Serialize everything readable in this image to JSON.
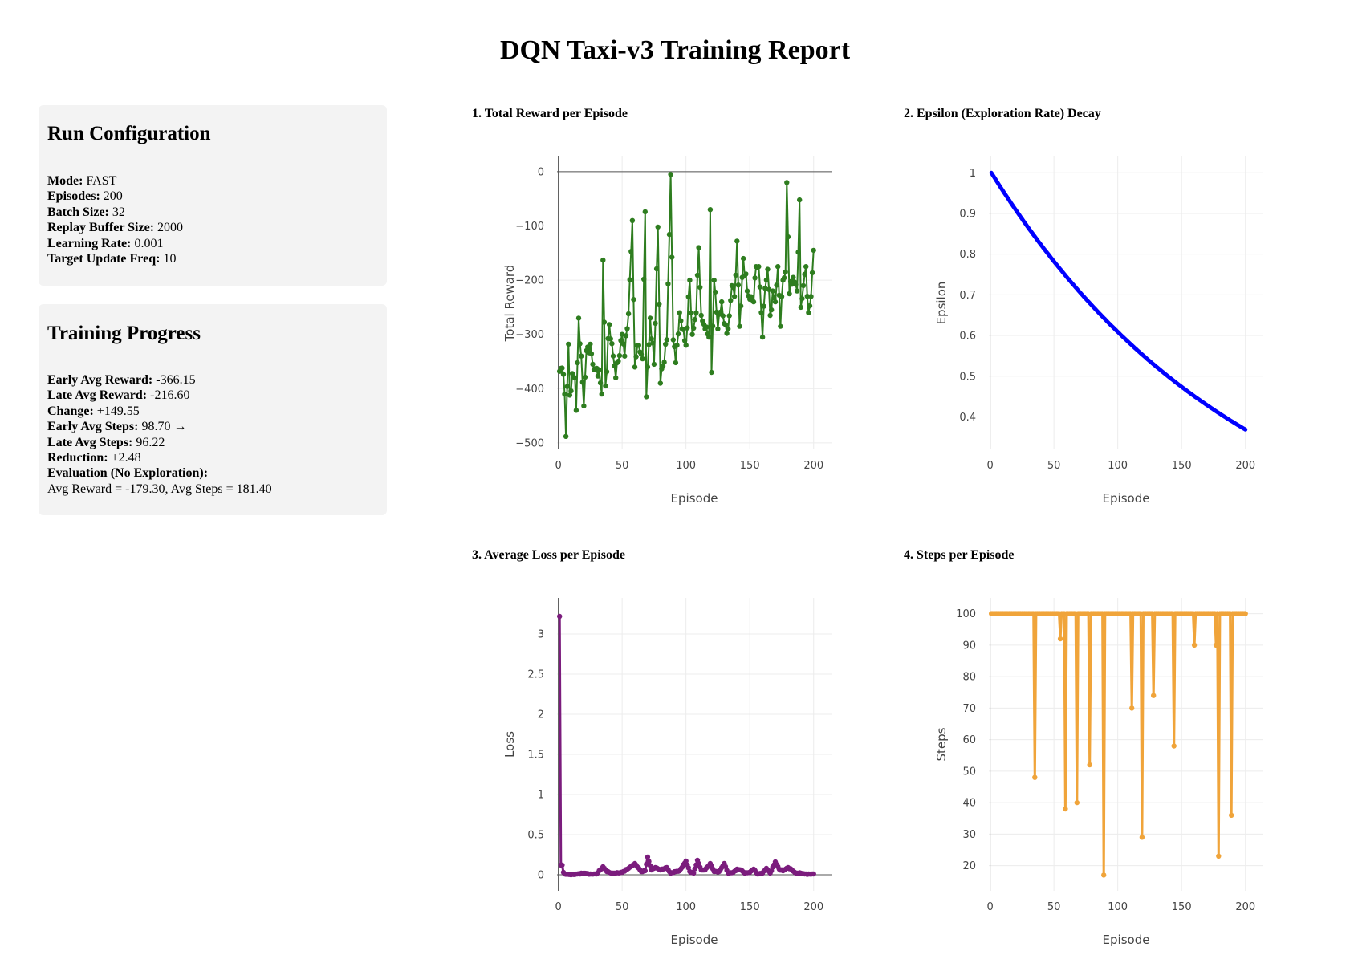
{
  "title": "DQN Taxi-v3 Training Report",
  "config": {
    "heading": "Run Configuration",
    "mode_label": "Mode:",
    "mode": "FAST",
    "episodes_label": "Episodes:",
    "episodes": "200",
    "batch_label": "Batch Size:",
    "batch": "32",
    "buffer_label": "Replay Buffer Size:",
    "buffer": "2000",
    "lr_label": "Learning Rate:",
    "lr": "0.001",
    "target_label": "Target Update Freq:",
    "target": "10"
  },
  "progress": {
    "heading": "Training Progress",
    "early_reward_label": "Early Avg Reward:",
    "early_reward": "-366.15",
    "late_reward_label": "Late Avg Reward:",
    "late_reward": "-216.60",
    "change_label": "Change:",
    "change": "+149.55",
    "early_steps_label": "Early Avg Steps:",
    "early_steps": "98.70 →",
    "late_steps_label": "Late Avg Steps:",
    "late_steps": "96.22",
    "reduction_label": "Reduction:",
    "reduction": "+2.48",
    "eval_label": "Evaluation (No Exploration):",
    "eval_text": "Avg Reward = -179.30, Avg Steps = 181.40"
  },
  "chart_data": [
    {
      "id": "reward",
      "type": "line",
      "title": "1. Total Reward per Episode",
      "xlabel": "Episode",
      "ylabel": "Total Reward",
      "xlim": [
        -1,
        214
      ],
      "ylim": [
        -512,
        28
      ],
      "xticks": [
        0,
        50,
        100,
        150,
        200
      ],
      "yticks": [
        0,
        -100,
        -200,
        -300,
        -400,
        -500
      ],
      "ytick_labels": [
        "0",
        "−100",
        "−200",
        "−300",
        "−400",
        "−500"
      ],
      "color": "#2e7d1f",
      "markers": true,
      "line_width": 2,
      "grid": true,
      "anchors": [
        [
          1,
          -368
        ],
        [
          3,
          -362
        ],
        [
          5,
          -410
        ],
        [
          6,
          -488
        ],
        [
          7,
          -396
        ],
        [
          8,
          -318
        ],
        [
          9,
          -412
        ],
        [
          11,
          -372
        ],
        [
          13,
          -380
        ],
        [
          14,
          -440
        ],
        [
          16,
          -270
        ],
        [
          18,
          -340
        ],
        [
          20,
          -432
        ],
        [
          22,
          -330
        ],
        [
          25,
          -318
        ],
        [
          28,
          -365
        ],
        [
          32,
          -365
        ],
        [
          34,
          -410
        ],
        [
          35,
          -163
        ],
        [
          37,
          -395
        ],
        [
          40,
          -282
        ],
        [
          45,
          -380
        ],
        [
          50,
          -300
        ],
        [
          52,
          -340
        ],
        [
          55,
          -262
        ],
        [
          58,
          -90
        ],
        [
          60,
          -360
        ],
        [
          62,
          -320
        ],
        [
          66,
          -345
        ],
        [
          68,
          -74
        ],
        [
          69,
          -415
        ],
        [
          72,
          -270
        ],
        [
          75,
          -355
        ],
        [
          78,
          -102
        ],
        [
          80,
          -390
        ],
        [
          85,
          -310
        ],
        [
          88,
          -5
        ],
        [
          90,
          -310
        ],
        [
          92,
          -352
        ],
        [
          95,
          -260
        ],
        [
          97,
          -290
        ],
        [
          100,
          -320
        ],
        [
          103,
          -200
        ],
        [
          105,
          -300
        ],
        [
          108,
          -260
        ],
        [
          110,
          -140
        ],
        [
          112,
          -265
        ],
        [
          115,
          -290
        ],
        [
          118,
          -305
        ],
        [
          119,
          -70
        ],
        [
          120,
          -370
        ],
        [
          122,
          -200
        ],
        [
          125,
          -290
        ],
        [
          128,
          -240
        ],
        [
          130,
          -280
        ],
        [
          133,
          -290
        ],
        [
          136,
          -210
        ],
        [
          138,
          -230
        ],
        [
          140,
          -128
        ],
        [
          142,
          -285
        ],
        [
          145,
          -160
        ],
        [
          148,
          -220
        ],
        [
          150,
          -235
        ],
        [
          153,
          -240
        ],
        [
          155,
          -175
        ],
        [
          157,
          -175
        ],
        [
          160,
          -305
        ],
        [
          162,
          -215
        ],
        [
          164,
          -180
        ],
        [
          166,
          -265
        ],
        [
          168,
          -220
        ],
        [
          170,
          -240
        ],
        [
          172,
          -175
        ],
        [
          174,
          -285
        ],
        [
          176,
          -200
        ],
        [
          178,
          -185
        ],
        [
          179,
          -20
        ],
        [
          181,
          -225
        ],
        [
          184,
          -195
        ],
        [
          187,
          -220
        ],
        [
          189,
          -52
        ],
        [
          190,
          -250
        ],
        [
          192,
          -210
        ],
        [
          194,
          -175
        ],
        [
          196,
          -260
        ],
        [
          198,
          -230
        ],
        [
          200,
          -145
        ]
      ]
    },
    {
      "id": "epsilon",
      "type": "line",
      "title": "2. Epsilon (Exploration Rate) Decay",
      "xlabel": "Episode",
      "ylabel": "Epsilon",
      "xlim": [
        -1,
        214
      ],
      "ylim": [
        0.32,
        1.04
      ],
      "xticks": [
        0,
        50,
        100,
        150,
        200
      ],
      "yticks": [
        1,
        0.9,
        0.8,
        0.7,
        0.6,
        0.5,
        0.4
      ],
      "ytick_labels": [
        "1",
        "0.9",
        "0.8",
        "0.7",
        "0.6",
        "0.5",
        "0.4"
      ],
      "color": "#0000ff",
      "markers": false,
      "line_width": 5,
      "grid": true,
      "decay": 0.995,
      "start": 1.0
    },
    {
      "id": "loss",
      "type": "line",
      "title": "3. Average Loss per Episode",
      "xlabel": "Episode",
      "ylabel": "Loss",
      "xlim": [
        -1,
        214
      ],
      "ylim": [
        -0.2,
        3.45
      ],
      "xticks": [
        0,
        50,
        100,
        150,
        200
      ],
      "yticks": [
        0,
        0.5,
        1,
        1.5,
        2,
        2.5,
        3
      ],
      "ytick_labels": [
        "0",
        "0.5",
        "1",
        "1.5",
        "2",
        "2.5",
        "3"
      ],
      "color": "#7b1c7d",
      "markers": true,
      "line_width": 3,
      "grid": true,
      "anchors": [
        [
          1,
          3.22
        ],
        [
          2,
          0.12
        ],
        [
          3,
          0.12
        ],
        [
          4,
          0.03
        ],
        [
          5,
          0.01
        ],
        [
          10,
          0.0
        ],
        [
          15,
          0.01
        ],
        [
          20,
          0.02
        ],
        [
          25,
          0.01
        ],
        [
          30,
          0.01
        ],
        [
          35,
          0.1
        ],
        [
          38,
          0.04
        ],
        [
          42,
          0.02
        ],
        [
          45,
          0.02
        ],
        [
          50,
          0.03
        ],
        [
          55,
          0.08
        ],
        [
          60,
          0.14
        ],
        [
          65,
          0.04
        ],
        [
          68,
          0.05
        ],
        [
          70,
          0.22
        ],
        [
          73,
          0.06
        ],
        [
          76,
          0.09
        ],
        [
          80,
          0.06
        ],
        [
          85,
          0.09
        ],
        [
          88,
          0.02
        ],
        [
          92,
          0.04
        ],
        [
          95,
          0.05
        ],
        [
          100,
          0.17
        ],
        [
          103,
          0.04
        ],
        [
          106,
          0.02
        ],
        [
          109,
          0.18
        ],
        [
          112,
          0.06
        ],
        [
          115,
          0.06
        ],
        [
          119,
          0.14
        ],
        [
          122,
          0.04
        ],
        [
          126,
          0.04
        ],
        [
          130,
          0.14
        ],
        [
          133,
          0.02
        ],
        [
          137,
          0.03
        ],
        [
          140,
          0.07
        ],
        [
          143,
          0.06
        ],
        [
          146,
          0.02
        ],
        [
          150,
          0.03
        ],
        [
          153,
          0.07
        ],
        [
          156,
          0.01
        ],
        [
          160,
          0.02
        ],
        [
          163,
          0.08
        ],
        [
          166,
          0.02
        ],
        [
          170,
          0.16
        ],
        [
          173,
          0.07
        ],
        [
          176,
          0.05
        ],
        [
          180,
          0.09
        ],
        [
          183,
          0.06
        ],
        [
          186,
          0.02
        ],
        [
          190,
          0.02
        ],
        [
          193,
          0.01
        ],
        [
          196,
          0.01
        ],
        [
          200,
          0.01
        ]
      ]
    },
    {
      "id": "steps",
      "type": "line",
      "title": "4. Steps per Episode",
      "xlabel": "Episode",
      "ylabel": "Steps",
      "xlim": [
        -1,
        214
      ],
      "ylim": [
        12,
        105
      ],
      "xticks": [
        0,
        50,
        100,
        150,
        200
      ],
      "yticks": [
        100,
        90,
        80,
        70,
        60,
        50,
        40,
        30,
        20
      ],
      "ytick_labels": [
        "100",
        "90",
        "80",
        "70",
        "60",
        "50",
        "40",
        "30",
        "20"
      ],
      "color": "#f0a43a",
      "markers": true,
      "line_width": 3,
      "grid": true,
      "baseline": 100,
      "dips": [
        [
          35,
          48
        ],
        [
          55,
          92
        ],
        [
          59,
          38
        ],
        [
          68,
          40
        ],
        [
          78,
          52
        ],
        [
          89,
          17
        ],
        [
          111,
          70
        ],
        [
          119,
          29
        ],
        [
          128,
          74
        ],
        [
          144,
          58
        ],
        [
          160,
          90
        ],
        [
          177,
          90
        ],
        [
          179,
          23
        ],
        [
          189,
          36
        ]
      ]
    }
  ]
}
